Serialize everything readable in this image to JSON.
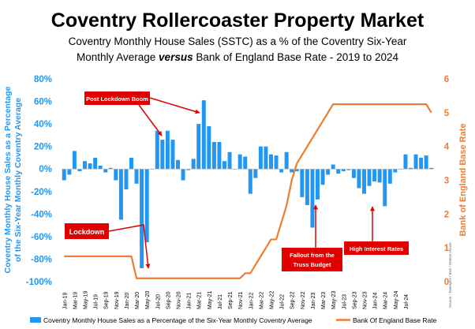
{
  "chart_data": {
    "type": "bar+line",
    "title": "Coventry Rollercoaster Property Market",
    "subtitle_line1": "Coventry Monthly House Sales (SSTC) as a % of the Coventry Six-Year",
    "subtitle_line2_a": "Monthly Average ",
    "subtitle_line2_b": "versus",
    "subtitle_line2_c": " Bank of England Base Rate - 2019 to 2024",
    "ylabel_left_line1": "Coventry Monthly House Sales as a Percentage",
    "ylabel_left_line2": "of the Six-Year Monthly Coventry Average",
    "ylabel_right": "Bank of England Base Rate",
    "ylim_left": [
      -100,
      80
    ],
    "ylim_right": [
      0,
      6
    ],
    "yticks_left": [
      "-100%",
      "-80%",
      "-60%",
      "-40%",
      "-20%",
      "0%",
      "20%",
      "40%",
      "60%",
      "80%"
    ],
    "yticks_right": [
      "0",
      "1",
      "2",
      "3",
      "4",
      "5",
      "6"
    ],
    "x_tick_labels": [
      "Jan-19",
      "Mar-19",
      "May-19",
      "Jul-19",
      "Sep-19",
      "Nov-19",
      "Jan-20",
      "Mar-20",
      "May-20",
      "Jul-20",
      "Sep-20",
      "Nov-20",
      "Jan-21",
      "Mar-21",
      "May-21",
      "Jul-21",
      "Sep-21",
      "Nov-21",
      "Jan-22",
      "Mar-22",
      "May-22",
      "Jul-22",
      "Sep-22",
      "Nov-22",
      "Jan-23",
      "Mar-23",
      "May-23",
      "Jul-23",
      "Sep-23",
      "Nov-23",
      "Jan-24",
      "Mar-24",
      "May-24",
      "Jul-24"
    ],
    "series": [
      {
        "name": "Coventry Monthly House Sales as a Percentage of the Six-Year Monthly Coventry Average",
        "axis": "left",
        "color": "#2196f3",
        "values": [
          -10,
          -5,
          16,
          -2,
          7,
          5,
          10,
          3,
          -3,
          1,
          -10,
          -45,
          -18,
          10,
          -13,
          -88,
          -65,
          0,
          34,
          26,
          34,
          26,
          8,
          -10,
          -1,
          9,
          40,
          61,
          38,
          24,
          24,
          7,
          15,
          0,
          13,
          11,
          -22,
          -8,
          20,
          20,
          13,
          12,
          -3,
          15,
          -3,
          -2,
          -25,
          -32,
          -52,
          -27,
          -14,
          -5,
          4,
          -4,
          -2,
          -1,
          -8,
          -17,
          -22,
          -15,
          -11,
          -12,
          -33,
          -13,
          -3,
          0,
          13,
          1,
          13,
          10,
          12,
          1
        ]
      },
      {
        "name": "Bank Of England Base Rate",
        "axis": "right",
        "color": "#ed7d31",
        "values": [
          0.75,
          0.75,
          0.75,
          0.75,
          0.75,
          0.75,
          0.75,
          0.75,
          0.75,
          0.75,
          0.75,
          0.75,
          0.75,
          0.75,
          0.1,
          0.1,
          0.1,
          0.1,
          0.1,
          0.1,
          0.1,
          0.1,
          0.1,
          0.1,
          0.1,
          0.1,
          0.1,
          0.1,
          0.1,
          0.1,
          0.1,
          0.1,
          0.1,
          0.1,
          0.1,
          0.25,
          0.25,
          0.5,
          0.75,
          1.0,
          1.25,
          1.25,
          1.75,
          2.25,
          3.0,
          3.5,
          3.75,
          4.0,
          4.25,
          4.5,
          4.75,
          5.0,
          5.25,
          5.25,
          5.25,
          5.25,
          5.25,
          5.25,
          5.25,
          5.25,
          5.25,
          5.25,
          5.25,
          5.25,
          5.25,
          5.25,
          5.25,
          5.25,
          5.25,
          5.25,
          5.25,
          5.0
        ]
      }
    ],
    "annotations": [
      {
        "text": "Post Lockdown Boom"
      },
      {
        "text": "Lockdown"
      },
      {
        "text_line1": "Fallout from the",
        "text_line2": "Truss Budget"
      },
      {
        "text": "High Interest Rates"
      }
    ],
    "source": "Source : TwentyEA / BoE / Denton House",
    "legend": {
      "placement": "bottom"
    },
    "grid": false
  }
}
